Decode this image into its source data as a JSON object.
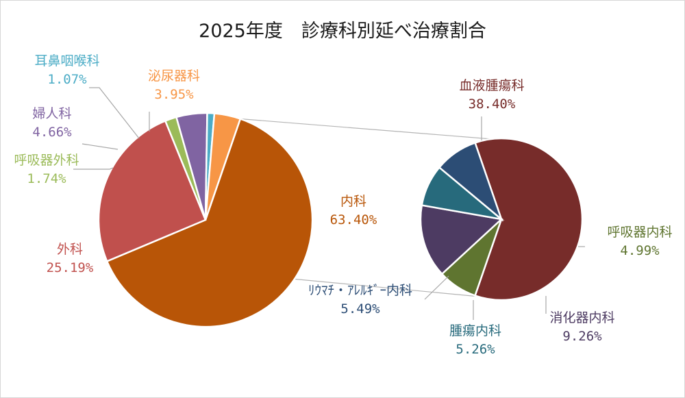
{
  "chart_data": {
    "type": "pie",
    "subtype": "pie-of-pie",
    "title": "2025年度　診療科別延べ治療割合",
    "main_pie": {
      "slices": [
        {
          "key": "naika",
          "name": "内科",
          "label": "63.40%",
          "value": 63.4,
          "color": "#B85507"
        },
        {
          "key": "geka",
          "name": "外科",
          "label": "25.19%",
          "value": 25.19,
          "color": "#C0504D"
        },
        {
          "key": "kokyuki_geka",
          "name": "呼吸器外科",
          "label": "1.74%",
          "value": 1.74,
          "color": "#9BBB59"
        },
        {
          "key": "fujinka",
          "name": "婦人科",
          "label": "4.66%",
          "value": 4.66,
          "color": "#8064A2"
        },
        {
          "key": "jibika",
          "name": "耳鼻咽喉科",
          "label": "1.07%",
          "value": 1.07,
          "color": "#4BACC6"
        },
        {
          "key": "hinyoki",
          "name": "泌尿器科",
          "label": "3.95%",
          "value": 3.95,
          "color": "#F79646"
        }
      ]
    },
    "secondary_pie": {
      "breakdown_of": "内科",
      "slices": [
        {
          "key": "ketsueki",
          "name": "血液腫瘍科",
          "label": "38.40%",
          "value": 38.4,
          "color": "#772C2A"
        },
        {
          "key": "kokyuki_naika",
          "name": "呼吸器内科",
          "label": "4.99%",
          "value": 4.99,
          "color": "#5F7530"
        },
        {
          "key": "shokaki",
          "name": "消化器内科",
          "label": "9.26%",
          "value": 9.26,
          "color": "#4D3B62"
        },
        {
          "key": "shuyo",
          "name": "腫瘍内科",
          "label": "5.26%",
          "value": 5.26,
          "color": "#276A7C"
        },
        {
          "key": "allergy",
          "name": "ﾘｳﾏﾁ・ｱﾚﾙｷﾞｰ内科",
          "label": "5.49%",
          "value": 5.49,
          "color": "#2C4D75"
        }
      ]
    },
    "data_labels": "outside-with-leader-lines",
    "legend": "none"
  }
}
